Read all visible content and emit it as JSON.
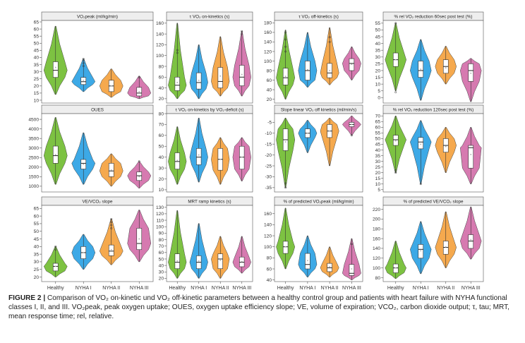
{
  "colors": {
    "Healthy": "#7dc242",
    "NYHA I": "#3da9e6",
    "NYHA II": "#f5a94e",
    "NYHA III": "#d67ab0",
    "strip": "#eeeeee",
    "box": "#ffffff",
    "mean": "#aaaaaa"
  },
  "groups": [
    "Healthy",
    "NYHA I",
    "NYHA II",
    "NYHA III"
  ],
  "caption": {
    "label": "FIGURE 2 |",
    "text": "Comparison of VO₂ on-kinetic und VO₂ off-kinetic parameters between a healthy control group and patients with heart failure with NYHA functional classes I, II, and III. VO₂peak, peak oxygen uptake; OUES, oxygen uptake efficiency slope; VE, volume of expiration; VCO₂, carbon dioxide output; τ, tau; MRT, mean response time; rel, relative."
  },
  "chart_data": [
    {
      "type": "violin",
      "title": "VO₂peak (ml/kg/min)",
      "categories": [
        "Healthy",
        "NYHA I",
        "NYHA II",
        "NYHA III"
      ],
      "ylim": [
        8,
        66
      ],
      "ticks": [
        10,
        15,
        20,
        25,
        30,
        35,
        40,
        45,
        50,
        55,
        60,
        65
      ],
      "series": [
        {
          "name": "Healthy",
          "min": 14,
          "q1": 26,
          "median": 31,
          "q3": 37,
          "max": 62,
          "mean": 33,
          "outliers": []
        },
        {
          "name": "NYHA I",
          "min": 16,
          "q1": 21,
          "median": 23,
          "q3": 26,
          "max": 39,
          "mean": 24,
          "outliers": [
            34,
            36,
            38,
            39
          ]
        },
        {
          "name": "NYHA II",
          "min": 12,
          "q1": 16,
          "median": 20,
          "q3": 24,
          "max": 32,
          "mean": 20,
          "outliers": []
        },
        {
          "name": "NYHA III",
          "min": 11,
          "q1": 13,
          "median": 15,
          "q3": 19,
          "max": 27,
          "mean": 16,
          "outliers": [
            26
          ]
        }
      ]
    },
    {
      "type": "violin",
      "title": "τ VO₂ on-kinetics (s)",
      "categories": [
        "Healthy",
        "NYHA I",
        "NYHA II",
        "NYHA III"
      ],
      "ylim": [
        12,
        165
      ],
      "ticks": [
        20,
        40,
        60,
        80,
        100,
        120,
        140,
        160
      ],
      "series": [
        {
          "name": "Healthy",
          "min": 20,
          "q1": 35,
          "median": 45,
          "q3": 60,
          "max": 160,
          "mean": 50,
          "outliers": [
            105,
            110
          ]
        },
        {
          "name": "NYHA I",
          "min": 20,
          "q1": 38,
          "median": 50,
          "q3": 68,
          "max": 120,
          "mean": 54,
          "outliers": []
        },
        {
          "name": "NYHA II",
          "min": 25,
          "q1": 40,
          "median": 52,
          "q3": 78,
          "max": 135,
          "mean": 62,
          "outliers": []
        },
        {
          "name": "NYHA III",
          "min": 25,
          "q1": 44,
          "median": 60,
          "q3": 82,
          "max": 145,
          "mean": 65,
          "outliers": [
            140,
            145
          ]
        }
      ]
    },
    {
      "type": "violin",
      "title": "τ VO₂ off-kinetics (s)",
      "categories": [
        "Healthy",
        "NYHA I",
        "NYHA II",
        "NYHA III"
      ],
      "ylim": [
        12,
        185
      ],
      "ticks": [
        20,
        40,
        60,
        80,
        100,
        120,
        140,
        160,
        180
      ],
      "series": [
        {
          "name": "Healthy",
          "min": 20,
          "q1": 50,
          "median": 65,
          "q3": 85,
          "max": 165,
          "mean": 68,
          "outliers": [
            120,
            130,
            145,
            160
          ]
        },
        {
          "name": "NYHA I",
          "min": 45,
          "q1": 60,
          "median": 80,
          "q3": 100,
          "max": 160,
          "mean": 82,
          "outliers": []
        },
        {
          "name": "NYHA II",
          "min": 50,
          "q1": 65,
          "median": 75,
          "q3": 95,
          "max": 170,
          "mean": 80,
          "outliers": [
            140,
            150
          ]
        },
        {
          "name": "NYHA III",
          "min": 60,
          "q1": 80,
          "median": 95,
          "q3": 105,
          "max": 130,
          "mean": 93,
          "outliers": []
        }
      ]
    },
    {
      "type": "violin",
      "title": "% rel VO₂ reduction 60sec post test (%)",
      "categories": [
        "Healthy",
        "NYHA I",
        "NYHA II",
        "NYHA III"
      ],
      "ylim": [
        -4,
        57
      ],
      "ticks": [
        0,
        5,
        10,
        15,
        20,
        25,
        30,
        35,
        40,
        45,
        50,
        55
      ],
      "series": [
        {
          "name": "Healthy",
          "min": 5,
          "q1": 23,
          "median": 28,
          "q3": 33,
          "max": 55,
          "mean": 28,
          "outliers": [
            4,
            55
          ]
        },
        {
          "name": "NYHA I",
          "min": -2,
          "q1": 15,
          "median": 20,
          "q3": 27,
          "max": 43,
          "mean": 21,
          "outliers": []
        },
        {
          "name": "NYHA II",
          "min": 10,
          "q1": 18,
          "median": 23,
          "q3": 28,
          "max": 38,
          "mean": 22,
          "outliers": []
        },
        {
          "name": "NYHA III",
          "min": -3,
          "q1": 12,
          "median": 20,
          "q3": 25,
          "max": 29,
          "mean": 18,
          "outliers": []
        }
      ]
    },
    {
      "type": "violin",
      "title": "OUES",
      "categories": [
        "Healthy",
        "NYHA I",
        "NYHA II",
        "NYHA III"
      ],
      "ylim": [
        700,
        4800
      ],
      "ticks": [
        1000,
        1500,
        2000,
        2500,
        3000,
        3500,
        4000,
        4500
      ],
      "series": [
        {
          "name": "Healthy",
          "min": 1100,
          "q1": 2200,
          "median": 2600,
          "q3": 3100,
          "max": 4600,
          "mean": 2650,
          "outliers": []
        },
        {
          "name": "NYHA I",
          "min": 1100,
          "q1": 1900,
          "median": 2200,
          "q3": 2400,
          "max": 3800,
          "mean": 2150,
          "outliers": []
        },
        {
          "name": "NYHA II",
          "min": 1000,
          "q1": 1500,
          "median": 1800,
          "q3": 2200,
          "max": 2700,
          "mean": 1850,
          "outliers": []
        },
        {
          "name": "NYHA III",
          "min": 900,
          "q1": 1300,
          "median": 1550,
          "q3": 1750,
          "max": 2300,
          "mean": 1500,
          "outliers": [
            2300
          ]
        }
      ]
    },
    {
      "type": "violin",
      "title": "τ VO₂ on-kinetics by VO₂-deficit (s)",
      "categories": [
        "Healthy",
        "NYHA I",
        "NYHA II",
        "NYHA III"
      ],
      "ylim": [
        8,
        80
      ],
      "ticks": [
        10,
        20,
        30,
        40,
        50,
        60,
        70,
        80
      ],
      "series": [
        {
          "name": "Healthy",
          "min": 15,
          "q1": 29,
          "median": 36,
          "q3": 44,
          "max": 68,
          "mean": 37,
          "outliers": []
        },
        {
          "name": "NYHA I",
          "min": 17,
          "q1": 33,
          "median": 40,
          "q3": 48,
          "max": 76,
          "mean": 42,
          "outliers": []
        },
        {
          "name": "NYHA II",
          "min": 15,
          "q1": 28,
          "median": 38,
          "q3": 48,
          "max": 58,
          "mean": 38,
          "outliers": []
        },
        {
          "name": "NYHA III",
          "min": 18,
          "q1": 29,
          "median": 40,
          "q3": 50,
          "max": 58,
          "mean": 40,
          "outliers": []
        }
      ]
    },
    {
      "type": "violin",
      "title": "Slope linear VO₂ off kinetics (ml/min/s)",
      "categories": [
        "Healthy",
        "NYHA I",
        "NYHA II",
        "NYHA III"
      ],
      "ylim": [
        -37,
        -1
      ],
      "ticks": [
        -35,
        -30,
        -25,
        -20,
        -15,
        -10,
        -5
      ],
      "series": [
        {
          "name": "Healthy",
          "min": -35,
          "q1": -18,
          "median": -13,
          "q3": -8,
          "max": -3,
          "mean": -14,
          "outliers": [
            -33,
            -35
          ]
        },
        {
          "name": "NYHA I",
          "min": -19,
          "q1": -12,
          "median": -10,
          "q3": -8,
          "max": -4,
          "mean": -10,
          "outliers": []
        },
        {
          "name": "NYHA II",
          "min": -25,
          "q1": -12,
          "median": -9,
          "q3": -6,
          "max": -3,
          "mean": -9,
          "outliers": []
        },
        {
          "name": "NYHA III",
          "min": -11,
          "q1": -7,
          "median": -6,
          "q3": -5,
          "max": -2,
          "mean": -6,
          "outliers": [
            -11
          ]
        }
      ]
    },
    {
      "type": "violin",
      "title": "% rel VO₂ reduction 120sec post test (%)",
      "categories": [
        "Healthy",
        "NYHA I",
        "NYHA II",
        "NYHA III"
      ],
      "ylim": [
        3,
        72
      ],
      "ticks": [
        5,
        10,
        15,
        20,
        25,
        30,
        35,
        40,
        45,
        50,
        55,
        60,
        65,
        70
      ],
      "series": [
        {
          "name": "Healthy",
          "min": 20,
          "q1": 44,
          "median": 49,
          "q3": 53,
          "max": 70,
          "mean": 48,
          "outliers": [
            20,
            22
          ]
        },
        {
          "name": "NYHA I",
          "min": 10,
          "q1": 41,
          "median": 47,
          "q3": 51,
          "max": 66,
          "mean": 45,
          "outliers": [
            10
          ]
        },
        {
          "name": "NYHA II",
          "min": 20,
          "q1": 38,
          "median": 44,
          "q3": 50,
          "max": 60,
          "mean": 43,
          "outliers": []
        },
        {
          "name": "NYHA III",
          "min": 10,
          "q1": 24,
          "median": 42,
          "q3": 44,
          "max": 60,
          "mean": 36,
          "outliers": []
        }
      ]
    },
    {
      "type": "violin",
      "title": "VE/VCO₂ slope",
      "categories": [
        "Healthy",
        "NYHA I",
        "NYHA II",
        "NYHA III"
      ],
      "ylim": [
        17,
        67
      ],
      "ticks": [
        20,
        25,
        30,
        35,
        40,
        45,
        50,
        55,
        60,
        65
      ],
      "series": [
        {
          "name": "Healthy",
          "min": 20,
          "q1": 24,
          "median": 27,
          "q3": 29,
          "max": 40,
          "mean": 27,
          "outliers": [
            38,
            40
          ]
        },
        {
          "name": "NYHA I",
          "min": 25,
          "q1": 32,
          "median": 36,
          "q3": 40,
          "max": 48,
          "mean": 36,
          "outliers": []
        },
        {
          "name": "NYHA II",
          "min": 28,
          "q1": 34,
          "median": 37,
          "q3": 41,
          "max": 58,
          "mean": 38,
          "outliers": [
            52,
            54,
            56,
            58
          ]
        },
        {
          "name": "NYHA III",
          "min": 30,
          "q1": 38,
          "median": 42,
          "q3": 52,
          "max": 64,
          "mean": 45,
          "outliers": []
        }
      ]
    },
    {
      "type": "violin",
      "title": "MRT ramp kinetics (s)",
      "categories": [
        "Healthy",
        "NYHA I",
        "NYHA II",
        "NYHA III"
      ],
      "ylim": [
        15,
        133
      ],
      "ticks": [
        20,
        30,
        40,
        50,
        60,
        70,
        80,
        90,
        100,
        110,
        120,
        130
      ],
      "series": [
        {
          "name": "Healthy",
          "min": 20,
          "q1": 35,
          "median": 45,
          "q3": 58,
          "max": 125,
          "mean": 47,
          "outliers": []
        },
        {
          "name": "NYHA I",
          "min": 20,
          "q1": 35,
          "median": 45,
          "q3": 55,
          "max": 105,
          "mean": 47,
          "outliers": []
        },
        {
          "name": "NYHA II",
          "min": 20,
          "q1": 35,
          "median": 50,
          "q3": 58,
          "max": 85,
          "mean": 48,
          "outliers": []
        },
        {
          "name": "NYHA III",
          "min": 28,
          "q1": 38,
          "median": 45,
          "q3": 53,
          "max": 85,
          "mean": 46,
          "outliers": []
        }
      ]
    },
    {
      "type": "violin",
      "title": "% of predicted VO₂peak (ml/kg/min)",
      "categories": [
        "Healthy",
        "NYHA I",
        "NYHA II",
        "NYHA III"
      ],
      "ylim": [
        37,
        175
      ],
      "ticks": [
        40,
        60,
        80,
        100,
        120,
        140,
        160
      ],
      "series": [
        {
          "name": "Healthy",
          "min": 60,
          "q1": 88,
          "median": 100,
          "q3": 110,
          "max": 170,
          "mean": 100,
          "outliers": []
        },
        {
          "name": "NYHA I",
          "min": 45,
          "q1": 60,
          "median": 68,
          "q3": 88,
          "max": 120,
          "mean": 75,
          "outliers": []
        },
        {
          "name": "NYHA II",
          "min": 45,
          "q1": 55,
          "median": 62,
          "q3": 70,
          "max": 100,
          "mean": 64,
          "outliers": []
        },
        {
          "name": "NYHA III",
          "min": 40,
          "q1": 48,
          "median": 52,
          "q3": 68,
          "max": 115,
          "mean": 60,
          "outliers": [
            105
          ]
        }
      ]
    },
    {
      "type": "violin",
      "title": "% of predicted VE/VCO₂ slope",
      "categories": [
        "Healthy",
        "NYHA I",
        "NYHA II",
        "NYHA III"
      ],
      "ylim": [
        72,
        228
      ],
      "ticks": [
        80,
        100,
        120,
        140,
        160,
        180,
        200,
        220
      ],
      "series": [
        {
          "name": "Healthy",
          "min": 78,
          "q1": 90,
          "median": 100,
          "q3": 108,
          "max": 155,
          "mean": 100,
          "outliers": []
        },
        {
          "name": "NYHA I",
          "min": 88,
          "q1": 120,
          "median": 138,
          "q3": 148,
          "max": 195,
          "mean": 135,
          "outliers": []
        },
        {
          "name": "NYHA II",
          "min": 100,
          "q1": 128,
          "median": 142,
          "q3": 155,
          "max": 215,
          "mean": 143,
          "outliers": []
        },
        {
          "name": "NYHA III",
          "min": 118,
          "q1": 140,
          "median": 155,
          "q3": 168,
          "max": 225,
          "mean": 158,
          "outliers": []
        }
      ]
    }
  ]
}
